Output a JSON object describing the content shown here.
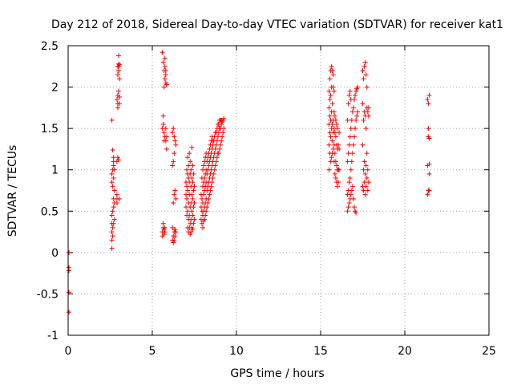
{
  "chart_data": {
    "type": "scatter",
    "title": "Day 212 of 2018, Sidereal Day-to-day VTEC variation (SDTVAR) for receiver kat1",
    "xlabel": "GPS time / hours",
    "ylabel": "SDTVAR / TECUs",
    "xlim": [
      0,
      25
    ],
    "ylim": [
      -1,
      2.5
    ],
    "xticks": [
      0,
      5,
      10,
      15,
      20,
      25
    ],
    "yticks": [
      -1,
      -0.5,
      0,
      0.5,
      1,
      1.5,
      2,
      2.5
    ],
    "xtick_labels": [
      "0",
      "5",
      "10",
      "15",
      "20",
      "25"
    ],
    "ytick_labels": [
      "-1",
      "-0.5",
      "0",
      "0.5",
      "1",
      "1.5",
      "2",
      "2.5"
    ],
    "grid": true,
    "marker": "plus",
    "series": [
      {
        "name": "SDTVAR",
        "color": "#ff0000",
        "x": [
          0.05,
          0.05,
          0.05,
          0.05,
          0.05,
          2.6,
          2.6,
          2.6,
          2.6,
          2.6,
          2.6,
          2.6,
          2.6,
          2.65,
          2.65,
          2.65,
          2.65,
          2.65,
          2.65,
          2.7,
          2.7,
          2.7,
          2.7,
          2.7,
          2.7,
          2.7,
          2.75,
          2.75,
          2.75,
          2.75,
          2.9,
          2.9,
          2.9,
          2.9,
          2.9,
          2.95,
          2.95,
          2.95,
          2.95,
          2.95,
          2.95,
          3.0,
          3.0,
          3.0,
          3.0,
          3.0,
          3.0,
          3.05,
          3.05,
          3.05,
          3.05,
          3.05,
          5.6,
          5.6,
          5.6,
          5.6,
          5.65,
          5.65,
          5.65,
          5.65,
          5.65,
          5.7,
          5.7,
          5.7,
          5.7,
          5.7,
          5.7,
          5.75,
          5.75,
          5.75,
          5.75,
          5.75,
          5.75,
          5.8,
          5.8,
          5.8,
          5.8,
          5.8,
          5.85,
          5.85,
          5.85,
          6.2,
          6.2,
          6.2,
          6.2,
          6.25,
          6.25,
          6.25,
          6.25,
          6.25,
          6.3,
          6.3,
          6.3,
          6.3,
          6.3,
          6.35,
          6.35,
          6.35,
          6.35,
          6.4,
          6.4,
          6.4,
          7.0,
          7.0,
          7.0,
          7.05,
          7.05,
          7.05,
          7.05,
          7.1,
          7.1,
          7.1,
          7.1,
          7.1,
          7.15,
          7.15,
          7.15,
          7.15,
          7.15,
          7.2,
          7.2,
          7.2,
          7.2,
          7.2,
          7.25,
          7.25,
          7.25,
          7.25,
          7.25,
          7.3,
          7.3,
          7.3,
          7.3,
          7.3,
          7.35,
          7.35,
          7.35,
          7.35,
          7.35,
          7.4,
          7.4,
          7.4,
          7.4,
          7.4,
          7.45,
          7.45,
          7.45,
          7.45,
          7.5,
          7.5,
          7.5,
          7.9,
          7.9,
          7.9,
          7.95,
          7.95,
          7.95,
          7.95,
          8.0,
          8.0,
          8.0,
          8.0,
          8.0,
          8.05,
          8.05,
          8.05,
          8.05,
          8.05,
          8.1,
          8.1,
          8.1,
          8.1,
          8.1,
          8.15,
          8.15,
          8.15,
          8.15,
          8.15,
          8.2,
          8.2,
          8.2,
          8.2,
          8.2,
          8.25,
          8.25,
          8.25,
          8.25,
          8.3,
          8.3,
          8.3,
          8.3,
          8.35,
          8.35,
          8.35,
          8.35,
          8.4,
          8.4,
          8.4,
          8.4,
          8.45,
          8.45,
          8.45,
          8.45,
          8.5,
          8.5,
          8.5,
          8.5,
          8.55,
          8.55,
          8.55,
          8.55,
          8.6,
          8.6,
          8.6,
          8.6,
          8.65,
          8.65,
          8.65,
          8.7,
          8.7,
          8.7,
          8.75,
          8.75,
          8.75,
          8.8,
          8.8,
          8.8,
          8.85,
          8.85,
          8.85,
          8.9,
          8.9,
          8.9,
          8.95,
          8.95,
          8.95,
          9.0,
          9.0,
          9.0,
          9.05,
          9.05,
          9.05,
          9.1,
          9.1,
          9.1,
          9.15,
          9.15,
          9.2,
          9.2,
          9.25,
          9.25,
          15.5,
          15.5,
          15.5,
          15.5,
          15.5,
          15.55,
          15.55,
          15.55,
          15.55,
          15.55,
          15.6,
          15.6,
          15.6,
          15.6,
          15.6,
          15.65,
          15.65,
          15.65,
          15.65,
          15.65,
          15.7,
          15.7,
          15.7,
          15.7,
          15.7,
          15.75,
          15.75,
          15.75,
          15.75,
          15.75,
          15.8,
          15.8,
          15.8,
          15.8,
          15.8,
          15.85,
          15.85,
          15.85,
          15.85,
          15.9,
          15.9,
          15.9,
          15.9,
          15.95,
          15.95,
          15.95,
          15.95,
          16.0,
          16.0,
          16.0,
          16.0,
          16.05,
          16.05,
          16.05,
          16.1,
          16.1,
          16.1,
          16.6,
          16.6,
          16.6,
          16.6,
          16.65,
          16.65,
          16.65,
          16.65,
          16.7,
          16.7,
          16.7,
          16.7,
          16.75,
          16.75,
          16.75,
          16.75,
          16.8,
          16.8,
          16.8,
          16.8,
          16.85,
          16.85,
          16.85,
          16.9,
          16.9,
          16.9,
          16.95,
          16.95,
          16.95,
          17.0,
          17.0,
          17.0,
          17.05,
          17.05,
          17.05,
          17.1,
          17.1,
          17.1,
          17.15,
          17.15,
          17.2,
          17.2,
          17.5,
          17.5,
          17.5,
          17.5,
          17.55,
          17.55,
          17.55,
          17.55,
          17.6,
          17.6,
          17.6,
          17.6,
          17.65,
          17.65,
          17.65,
          17.65,
          17.7,
          17.7,
          17.7,
          17.7,
          17.75,
          17.75,
          17.75,
          17.75,
          17.8,
          17.8,
          17.8,
          17.85,
          17.85,
          17.85,
          21.35,
          21.35,
          21.35,
          21.4,
          21.4,
          21.4,
          21.4,
          21.45,
          21.45,
          21.45,
          21.45,
          21.45
        ],
        "y": [
          0.0,
          -0.18,
          -0.22,
          -0.48,
          -0.72,
          0.05,
          0.15,
          0.25,
          0.35,
          0.45,
          0.85,
          0.95,
          1.6,
          0.2,
          0.3,
          0.5,
          0.8,
          1.0,
          1.24,
          0.35,
          0.55,
          0.65,
          0.9,
          1.05,
          1.1,
          1.15,
          0.4,
          0.6,
          0.75,
          1.0,
          0.6,
          0.65,
          0.7,
          1.1,
          1.85,
          1.15,
          1.75,
          1.8,
          1.9,
          2.15,
          2.25,
          2.2,
          2.25,
          2.28,
          2.38,
          1.95,
          1.12,
          0.65,
          1.8,
          1.88,
          2.27,
          2.1,
          0.2,
          0.25,
          1.5,
          2.42,
          0.3,
          0.35,
          1.55,
          1.65,
          2.3,
          0.22,
          0.28,
          1.35,
          1.45,
          2.0,
          2.2,
          0.25,
          0.3,
          1.4,
          2.1,
          2.25,
          2.35,
          1.35,
          1.5,
          2.05,
          2.15,
          2.2,
          1.25,
          1.4,
          2.03,
          0.15,
          0.3,
          1.05,
          1.45,
          0.12,
          0.2,
          0.6,
          1.1,
          1.5,
          0.15,
          0.25,
          0.7,
          1.2,
          1.4,
          0.2,
          0.28,
          0.75,
          1.35,
          0.25,
          0.65,
          1.3,
          0.55,
          0.7,
          0.85,
          0.45,
          0.65,
          0.8,
          1.0,
          0.3,
          0.5,
          0.75,
          0.95,
          1.15,
          0.25,
          0.4,
          0.6,
          0.9,
          1.05,
          0.3,
          0.45,
          0.7,
          0.85,
          1.2,
          0.22,
          0.35,
          0.55,
          0.95,
          1.1,
          0.25,
          0.4,
          0.6,
          0.8,
          1.0,
          0.3,
          0.5,
          0.7,
          0.9,
          1.27,
          0.28,
          0.45,
          0.65,
          0.85,
          1.05,
          0.35,
          0.55,
          0.75,
          0.95,
          0.4,
          0.6,
          0.8,
          0.4,
          0.55,
          0.7,
          0.35,
          0.5,
          0.65,
          0.9,
          0.3,
          0.45,
          0.6,
          0.8,
          1.0,
          0.38,
          0.5,
          0.7,
          0.85,
          1.05,
          0.4,
          0.55,
          0.75,
          0.9,
          1.1,
          0.45,
          0.6,
          0.8,
          0.95,
          1.15,
          0.5,
          0.65,
          0.85,
          1.0,
          1.2,
          0.55,
          0.75,
          0.95,
          1.1,
          0.6,
          0.8,
          1.0,
          1.15,
          0.65,
          0.85,
          1.05,
          1.2,
          0.7,
          0.9,
          1.1,
          1.25,
          0.75,
          0.95,
          1.15,
          1.3,
          0.8,
          1.0,
          1.2,
          1.35,
          0.85,
          1.05,
          1.25,
          1.4,
          0.9,
          1.1,
          1.3,
          1.35,
          0.95,
          1.15,
          1.35,
          1.0,
          1.2,
          1.4,
          1.05,
          1.25,
          1.45,
          1.1,
          1.3,
          1.45,
          1.15,
          1.35,
          1.5,
          1.2,
          1.4,
          1.55,
          1.2,
          1.45,
          1.55,
          1.25,
          1.5,
          1.6,
          1.3,
          1.5,
          1.6,
          1.35,
          1.55,
          1.6,
          1.4,
          1.58,
          1.45,
          1.6,
          1.5,
          1.62,
          1.0,
          1.3,
          1.55,
          1.75,
          1.95,
          1.2,
          1.45,
          1.65,
          1.85,
          2.1,
          1.1,
          1.4,
          1.6,
          1.9,
          2.2,
          1.15,
          1.5,
          1.7,
          2.0,
          2.25,
          1.2,
          1.35,
          1.55,
          1.8,
          2.2,
          1.25,
          1.45,
          1.6,
          2.0,
          2.15,
          1.1,
          1.3,
          1.5,
          1.7,
          1.95,
          0.95,
          1.2,
          1.45,
          1.65,
          0.9,
          1.1,
          1.4,
          1.6,
          0.85,
          1.05,
          1.3,
          1.55,
          0.8,
          1.0,
          1.25,
          1.5,
          0.85,
          1.0,
          1.3,
          1.0,
          1.25,
          1.45,
          0.5,
          0.7,
          1.1,
          1.6,
          0.55,
          0.75,
          1.2,
          1.8,
          0.6,
          0.85,
          1.3,
          1.9,
          0.65,
          0.9,
          1.4,
          1.95,
          0.7,
          1.0,
          1.5,
          1.85,
          0.75,
          1.1,
          1.6,
          0.8,
          1.2,
          1.7,
          0.65,
          1.3,
          1.75,
          0.55,
          1.4,
          1.85,
          0.5,
          1.5,
          1.9,
          0.48,
          1.6,
          1.95,
          1.65,
          1.98,
          1.7,
          2.0,
          0.8,
          1.3,
          1.8,
          2.2,
          0.75,
          1.0,
          1.6,
          2.1,
          0.85,
          1.1,
          1.7,
          2.25,
          0.7,
          0.95,
          1.65,
          2.3,
          0.8,
          1.05,
          1.5,
          2.15,
          0.9,
          1.2,
          1.75,
          2.0,
          0.75,
          1.0,
          1.7,
          0.85,
          1.65,
          1.75,
          0.7,
          1.05,
          1.85,
          0.75,
          1.4,
          1.5,
          1.8,
          0.75,
          0.95,
          1.07,
          1.38,
          1.9
        ]
      }
    ]
  }
}
